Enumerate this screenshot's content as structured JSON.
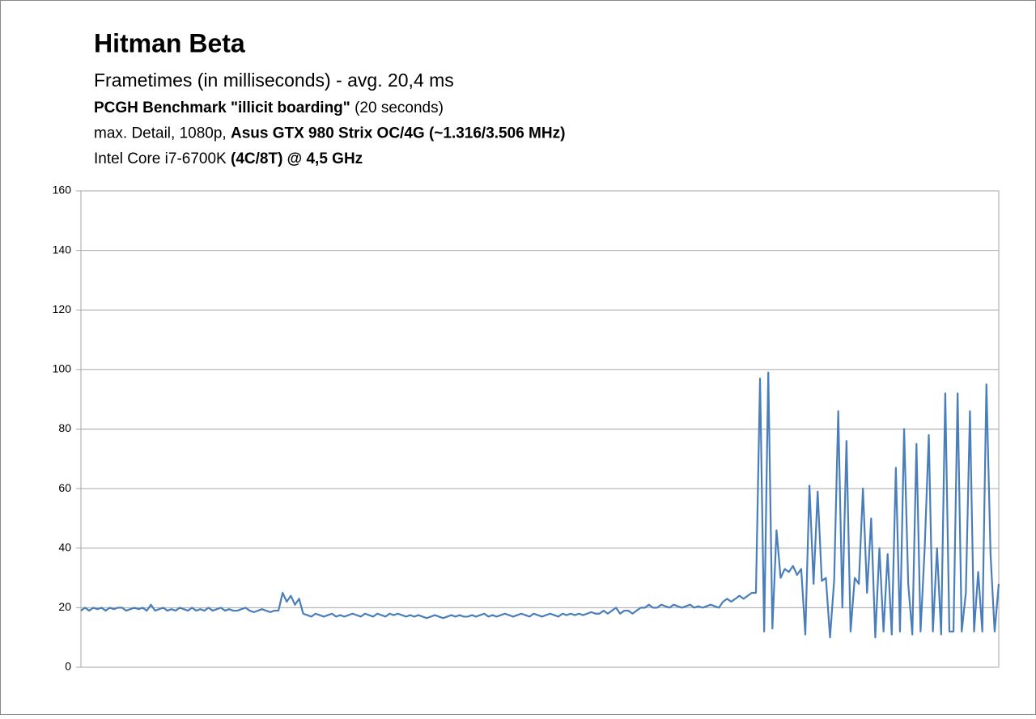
{
  "chart_data": {
    "type": "line",
    "title": "Hitman Beta",
    "subtitle": "Frametimes (in milliseconds) - avg. 20,4 ms",
    "info_lines": [
      [
        {
          "text": "PCGH Benchmark \"illicit boarding\"",
          "bold": true
        },
        {
          "text": " (20 seconds)",
          "bold": false
        }
      ],
      [
        {
          "text": "max. Detail, 1080p, ",
          "bold": false
        },
        {
          "text": "Asus GTX 980 Strix OC/4G (~1.316/3.506 MHz)",
          "bold": true
        }
      ],
      [
        {
          "text": "Intel Core i7-6700K ",
          "bold": false
        },
        {
          "text": "(4C/8T) @ 4,5 GHz",
          "bold": true
        }
      ]
    ],
    "color": "#4a7ebb",
    "grid": true,
    "ylim": [
      0,
      160
    ],
    "yticks": [
      0,
      20,
      40,
      60,
      80,
      100,
      120,
      140,
      160
    ],
    "values": [
      19,
      20,
      19,
      20,
      19.5,
      20,
      19,
      20,
      19.5,
      20,
      20,
      19,
      19.5,
      20,
      19.5,
      20,
      19,
      21,
      19,
      19.5,
      20,
      19,
      19.5,
      19,
      20,
      19.5,
      19,
      20,
      19,
      19.5,
      19,
      20,
      19,
      19.5,
      20,
      19,
      19.5,
      19,
      19,
      19.5,
      20,
      19,
      18.5,
      19,
      19.5,
      19,
      18.5,
      19,
      19,
      25,
      22,
      24,
      21,
      23,
      18,
      17.5,
      17,
      18,
      17.5,
      17,
      17.5,
      18,
      17,
      17.5,
      17,
      17.5,
      18,
      17.5,
      17,
      18,
      17.5,
      17,
      18,
      17.5,
      17,
      18,
      17.5,
      18,
      17.5,
      17,
      17.5,
      17,
      17.5,
      17,
      16.5,
      17,
      17.5,
      17,
      16.5,
      17,
      17.5,
      17,
      17.5,
      17,
      17,
      17.5,
      17,
      17.5,
      18,
      17,
      17.5,
      17,
      17.5,
      18,
      17.5,
      17,
      17.5,
      18,
      17.5,
      17,
      18,
      17.5,
      17,
      17.5,
      18,
      17.5,
      17,
      18,
      17.5,
      18,
      17.5,
      18,
      17.5,
      18,
      18.5,
      18,
      18,
      19,
      18,
      19,
      20,
      18,
      19,
      19,
      18,
      19,
      20,
      20,
      21,
      20,
      20,
      21,
      20.5,
      20,
      21,
      20.5,
      20,
      20.5,
      21,
      20,
      20.5,
      20,
      20.5,
      21,
      20.5,
      20,
      22,
      23,
      22,
      23,
      24,
      23,
      24,
      25,
      25,
      97,
      12,
      99,
      13,
      46,
      30,
      33,
      32,
      34,
      31,
      33,
      11,
      61,
      28,
      59,
      29,
      30,
      10,
      29,
      86,
      20,
      76,
      12,
      30,
      28,
      60,
      25,
      50,
      10,
      40,
      12,
      38,
      11,
      67,
      12,
      80,
      28,
      11,
      75,
      12,
      40,
      78,
      12,
      40,
      11,
      92,
      12,
      12,
      92,
      12,
      25,
      86,
      12,
      32,
      12,
      95,
      38,
      12,
      28
    ]
  }
}
